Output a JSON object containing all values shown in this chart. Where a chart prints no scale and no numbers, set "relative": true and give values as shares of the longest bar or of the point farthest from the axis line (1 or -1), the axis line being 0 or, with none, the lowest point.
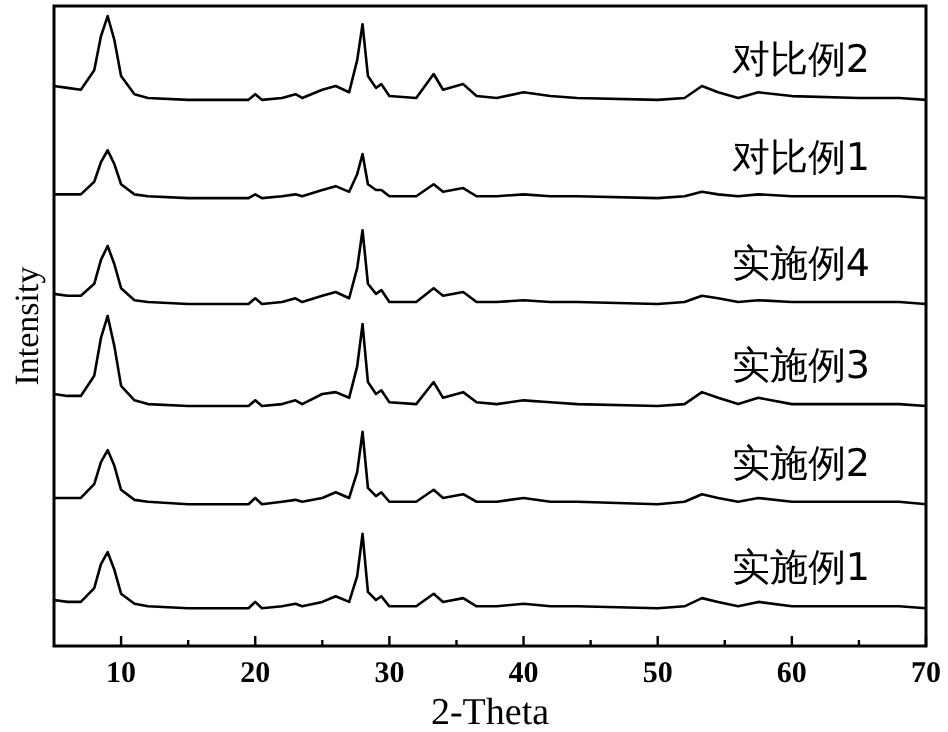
{
  "chart_data": {
    "type": "line",
    "xlabel": "2-Theta",
    "ylabel": "Intensity",
    "relative": true,
    "tick_labels": "x",
    "xlim": [
      5,
      70
    ],
    "xticks": [
      10,
      {
        "value": 15,
        "label": null
      },
      20,
      {
        "value": 25,
        "label": null
      },
      30,
      {
        "value": 35,
        "label": null
      },
      40,
      {
        "value": 45,
        "label": null
      },
      50,
      {
        "value": 55,
        "label": null
      },
      60,
      {
        "value": 65,
        "label": null
      },
      70
    ],
    "marker": "none",
    "line_style": "solid",
    "x": [
      5,
      6,
      7,
      8,
      8.5,
      9,
      9.5,
      10,
      11,
      12,
      15,
      19.5,
      20,
      20.5,
      22,
      23,
      23.5,
      25,
      26,
      27,
      27.6,
      28,
      28.4,
      29,
      29.4,
      30,
      32,
      33.3,
      34,
      35.5,
      36.5,
      38,
      40,
      42,
      44,
      50,
      52,
      53.3,
      54.5,
      56,
      57.5,
      60,
      65,
      68,
      70
    ],
    "series": [
      {
        "name": "对比例2",
        "color": "#000000",
        "values": [
          0.889,
          0.886,
          0.883,
          0.914,
          0.968,
          1.0,
          0.962,
          0.905,
          0.876,
          0.87,
          0.867,
          0.867,
          0.876,
          0.867,
          0.87,
          0.876,
          0.87,
          0.883,
          0.889,
          0.879,
          0.93,
          0.987,
          0.905,
          0.886,
          0.892,
          0.873,
          0.87,
          0.908,
          0.883,
          0.892,
          0.873,
          0.87,
          0.879,
          0.873,
          0.87,
          0.867,
          0.87,
          0.889,
          0.879,
          0.87,
          0.879,
          0.873,
          0.87,
          0.87,
          0.867
        ]
      },
      {
        "name": "对比例1",
        "color": "#000000",
        "values": [
          0.717,
          0.717,
          0.717,
          0.737,
          0.768,
          0.787,
          0.765,
          0.733,
          0.717,
          0.714,
          0.711,
          0.711,
          0.717,
          0.711,
          0.714,
          0.717,
          0.714,
          0.724,
          0.73,
          0.721,
          0.749,
          0.781,
          0.733,
          0.724,
          0.724,
          0.714,
          0.714,
          0.733,
          0.721,
          0.727,
          0.714,
          0.714,
          0.717,
          0.714,
          0.714,
          0.711,
          0.714,
          0.721,
          0.717,
          0.714,
          0.717,
          0.714,
          0.714,
          0.714,
          0.711
        ]
      },
      {
        "name": "实施例4",
        "color": "#000000",
        "values": [
          0.559,
          0.556,
          0.556,
          0.575,
          0.613,
          0.635,
          0.606,
          0.568,
          0.549,
          0.546,
          0.543,
          0.543,
          0.552,
          0.543,
          0.546,
          0.552,
          0.546,
          0.556,
          0.562,
          0.552,
          0.6,
          0.66,
          0.575,
          0.559,
          0.565,
          0.546,
          0.546,
          0.568,
          0.556,
          0.562,
          0.546,
          0.546,
          0.549,
          0.546,
          0.546,
          0.543,
          0.546,
          0.556,
          0.552,
          0.546,
          0.549,
          0.546,
          0.546,
          0.546,
          0.543
        ]
      },
      {
        "name": "实施例3",
        "color": "#000000",
        "values": [
          0.4,
          0.397,
          0.397,
          0.429,
          0.489,
          0.524,
          0.476,
          0.413,
          0.39,
          0.384,
          0.381,
          0.381,
          0.39,
          0.381,
          0.384,
          0.39,
          0.384,
          0.4,
          0.403,
          0.394,
          0.444,
          0.511,
          0.419,
          0.4,
          0.406,
          0.387,
          0.384,
          0.419,
          0.394,
          0.403,
          0.387,
          0.384,
          0.39,
          0.387,
          0.384,
          0.381,
          0.384,
          0.403,
          0.394,
          0.384,
          0.394,
          0.384,
          0.384,
          0.384,
          0.381
        ]
      },
      {
        "name": "实施例2",
        "color": "#000000",
        "values": [
          0.235,
          0.235,
          0.235,
          0.257,
          0.292,
          0.311,
          0.286,
          0.248,
          0.232,
          0.229,
          0.225,
          0.225,
          0.235,
          0.225,
          0.229,
          0.232,
          0.229,
          0.235,
          0.244,
          0.235,
          0.276,
          0.34,
          0.251,
          0.238,
          0.244,
          0.229,
          0.229,
          0.248,
          0.235,
          0.241,
          0.229,
          0.229,
          0.235,
          0.229,
          0.229,
          0.225,
          0.229,
          0.241,
          0.235,
          0.229,
          0.235,
          0.229,
          0.229,
          0.229,
          0.225
        ]
      },
      {
        "name": "实施例1",
        "color": "#000000",
        "values": [
          0.073,
          0.07,
          0.07,
          0.092,
          0.13,
          0.149,
          0.121,
          0.083,
          0.067,
          0.063,
          0.06,
          0.06,
          0.07,
          0.06,
          0.063,
          0.067,
          0.063,
          0.07,
          0.079,
          0.07,
          0.111,
          0.178,
          0.086,
          0.073,
          0.079,
          0.063,
          0.063,
          0.083,
          0.07,
          0.076,
          0.063,
          0.063,
          0.067,
          0.063,
          0.063,
          0.06,
          0.063,
          0.076,
          0.07,
          0.063,
          0.07,
          0.063,
          0.063,
          0.063,
          0.06
        ]
      }
    ]
  }
}
